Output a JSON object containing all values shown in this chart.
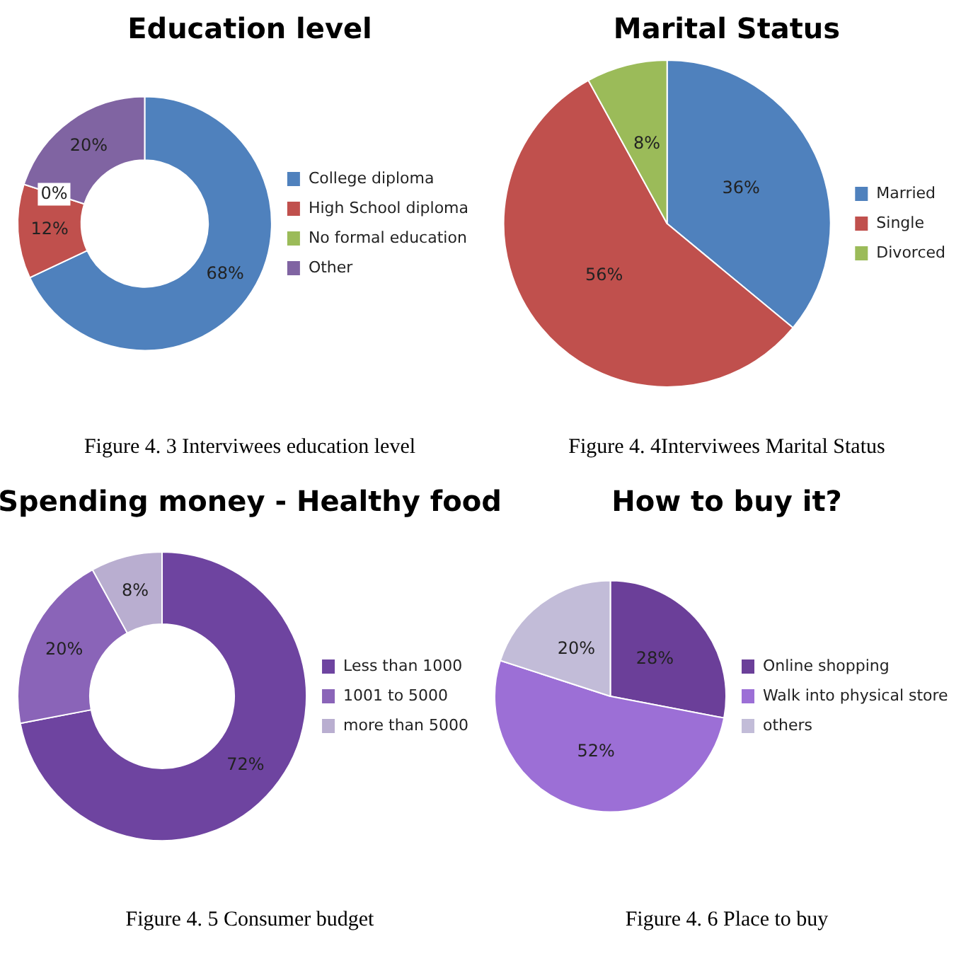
{
  "chart_data": [
    {
      "type": "donut",
      "title": "Education level",
      "categories": [
        "College diploma",
        "High School diploma",
        "No formal education",
        "Other"
      ],
      "values": [
        68,
        12,
        0,
        20
      ],
      "colors": [
        "#4f81bd",
        "#c0504d",
        "#9bbb59",
        "#8064a2"
      ],
      "value_labels": [
        "68%",
        "12%",
        "0%",
        "20%"
      ],
      "legend": "right",
      "annotations": [
        "Figure 4. 3 Interviwees education level"
      ]
    },
    {
      "type": "pie",
      "title": "Marital Status",
      "categories": [
        "Married",
        "Single",
        "Divorced"
      ],
      "values": [
        36,
        56,
        8
      ],
      "colors": [
        "#4f81bd",
        "#c0504d",
        "#9bbb59"
      ],
      "value_labels": [
        "36%",
        "56%",
        "8%"
      ],
      "legend": "right",
      "annotations": [
        "Figure 4. 4Interviwees Marital Status"
      ]
    },
    {
      "type": "donut",
      "title": "Spending money - Healthy food",
      "categories": [
        "Less than 1000",
        "1001 to 5000",
        "more than 5000"
      ],
      "values": [
        72,
        20,
        8
      ],
      "colors": [
        "#6e44a0",
        "#8a64b8",
        "#b9aed0"
      ],
      "value_labels": [
        "72%",
        "20%",
        "8%"
      ],
      "legend": "right",
      "annotations": [
        "Figure 4. 5 Consumer budget"
      ]
    },
    {
      "type": "pie",
      "title": "How to buy it?",
      "categories": [
        "Online shopping",
        "Walk into physical store",
        "others"
      ],
      "values": [
        28,
        52,
        20
      ],
      "colors": [
        "#6b3f99",
        "#9c6fd6",
        "#c2bcd8"
      ],
      "value_labels": [
        "28%",
        "52%",
        "20%"
      ],
      "legend": "right",
      "annotations": [
        "Figure 4. 6 Place to buy"
      ]
    }
  ]
}
